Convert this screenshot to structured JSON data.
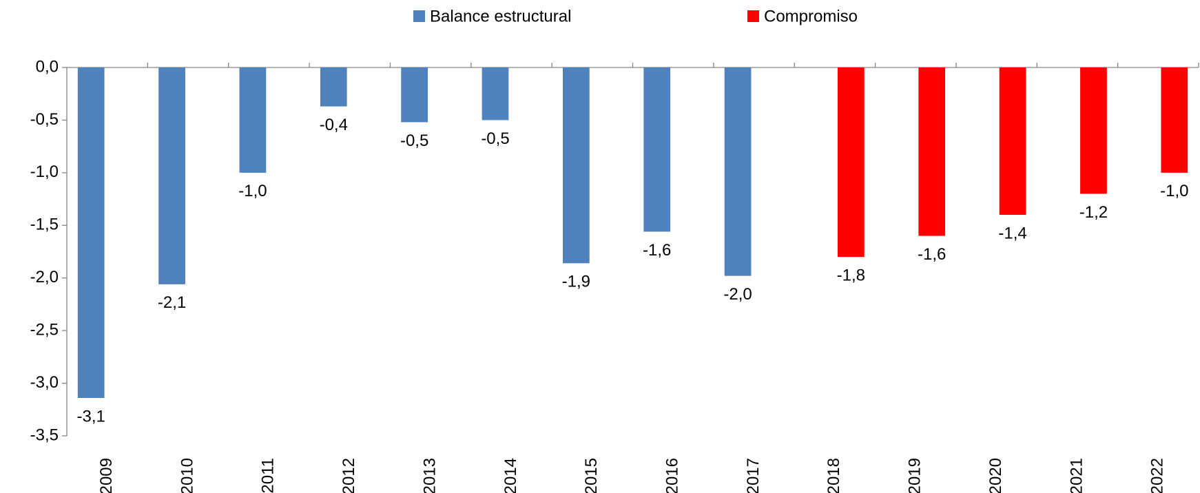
{
  "chart_data": {
    "type": "bar",
    "categories": [
      "2009",
      "2010",
      "2011",
      "2012",
      "2013",
      "2014",
      "2015",
      "2016",
      "2017",
      "2018",
      "2019",
      "2020",
      "2021",
      "2022"
    ],
    "series": [
      {
        "name": "Balance estructural",
        "color": "#4f81bd",
        "values": [
          -3.14,
          -2.06,
          -1.0,
          -0.37,
          -0.52,
          -0.5,
          -1.86,
          -1.56,
          -1.98,
          null,
          null,
          null,
          null,
          null
        ],
        "value_labels": [
          "-3,1",
          "-2,1",
          "-1,0",
          "-0,4",
          "-0,5",
          "-0,5",
          "-1,9",
          "-1,6",
          "-2,0",
          null,
          null,
          null,
          null,
          null
        ]
      },
      {
        "name": "Compromiso",
        "color": "#ff0000",
        "values": [
          null,
          null,
          null,
          null,
          null,
          null,
          null,
          null,
          null,
          -1.8,
          -1.6,
          -1.4,
          -1.2,
          -1.0
        ],
        "value_labels": [
          null,
          null,
          null,
          null,
          null,
          null,
          null,
          null,
          null,
          "-1,8",
          "-1,6",
          "-1,4",
          "-1,2",
          "-1,0"
        ]
      }
    ],
    "ylim": [
      -3.5,
      0
    ],
    "yticks": [
      {
        "value": 0,
        "label": "0,0"
      },
      {
        "value": -0.5,
        "label": "-0,5"
      },
      {
        "value": -1,
        "label": "-1,0"
      },
      {
        "value": -1.5,
        "label": "-1,5"
      },
      {
        "value": -2,
        "label": "-2,0"
      },
      {
        "value": -2.5,
        "label": "-2,5"
      },
      {
        "value": -3,
        "label": "-3,0"
      },
      {
        "value": -3.5,
        "label": "-3,5"
      }
    ],
    "legend": "top"
  }
}
